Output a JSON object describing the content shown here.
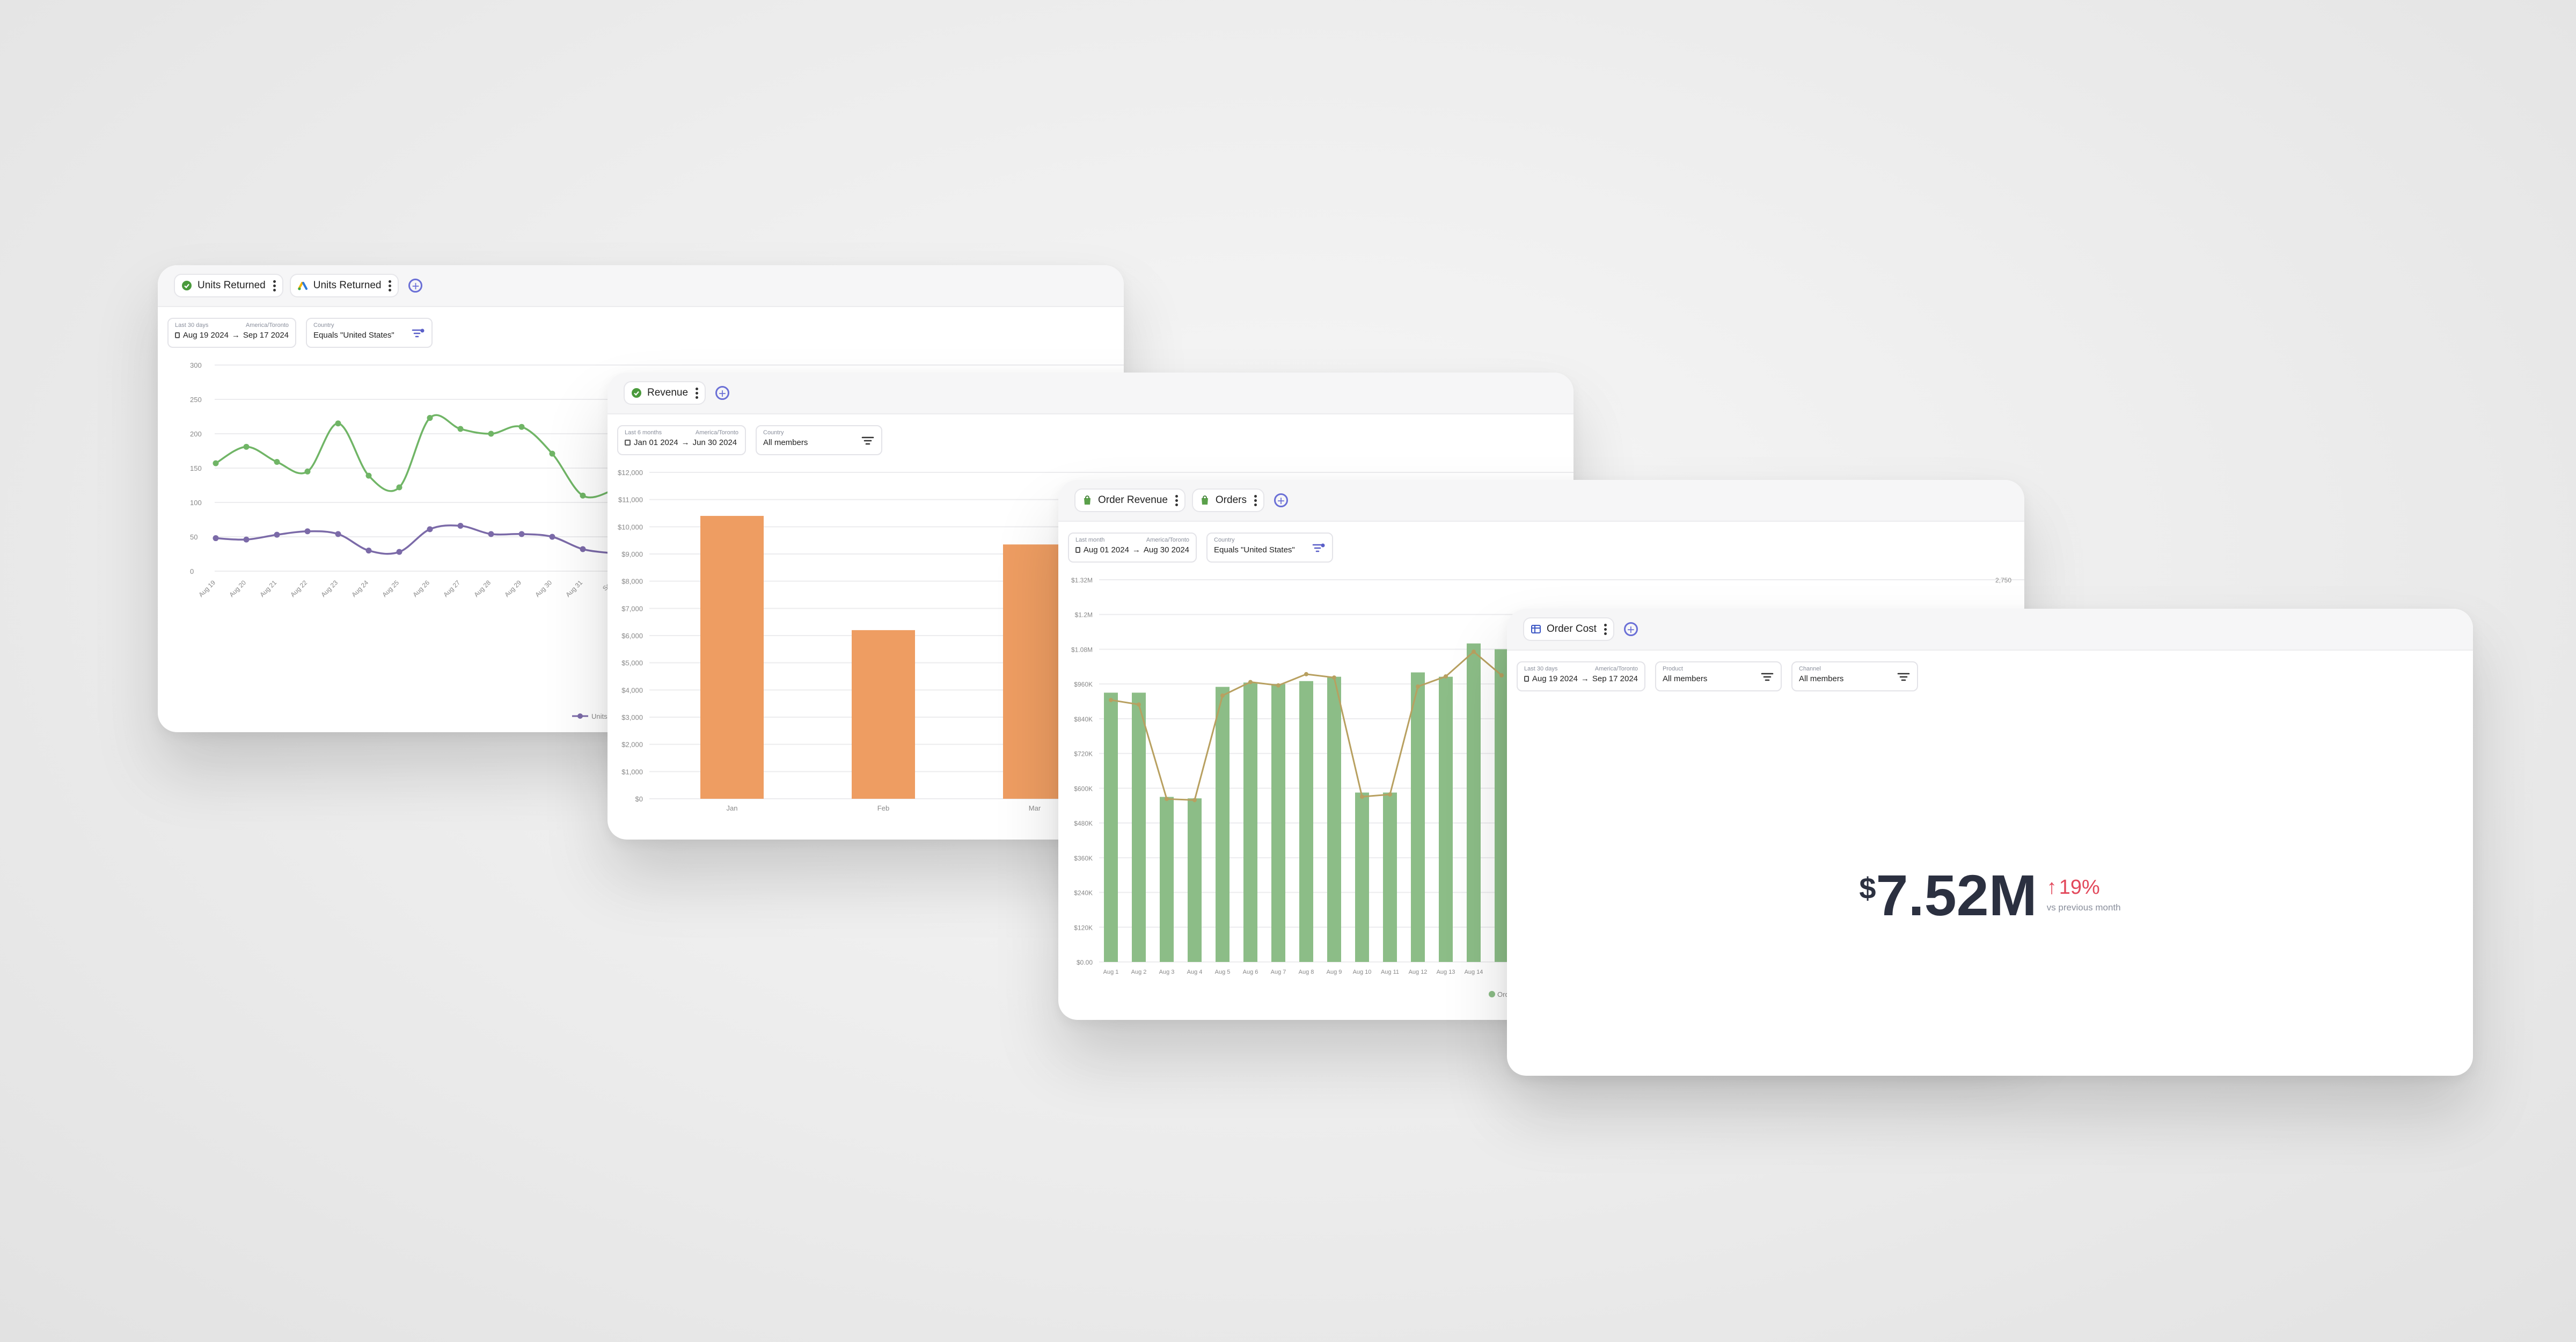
{
  "cards": {
    "units": {
      "tabs": [
        {
          "label": "Units Returned",
          "icon": "shopify-icon"
        },
        {
          "label": "Units Returned",
          "icon": "google-ads-icon"
        }
      ],
      "date": {
        "preset": "Last 30 days",
        "tz": "America/Toronto",
        "from": "Aug 19 2024",
        "to": "Sep 17 2024"
      },
      "filter": {
        "label": "Country",
        "value": "Equals \"United States\""
      },
      "legend_label": "Units"
    },
    "revenue": {
      "tabs": [
        {
          "label": "Revenue",
          "icon": "shopify-icon"
        }
      ],
      "date": {
        "preset": "Last 6 months",
        "tz": "America/Toronto",
        "from": "Jan 01 2024",
        "to": "Jun 30 2024"
      },
      "filter": {
        "label": "Country",
        "value": "All members"
      }
    },
    "orders": {
      "tabs": [
        {
          "label": "Order Revenue",
          "icon": "shopify-icon"
        },
        {
          "label": "Orders",
          "icon": "shopify-icon"
        }
      ],
      "date": {
        "preset": "Last month",
        "tz": "America/Toronto",
        "from": "Aug 01 2024",
        "to": "Aug 30 2024"
      },
      "filter": {
        "label": "Country",
        "value": "Equals \"United States\""
      },
      "legend_label": "Ord"
    },
    "cost": {
      "tabs": [
        {
          "label": "Order Cost",
          "icon": "spreadsheet-icon"
        }
      ],
      "date": {
        "preset": "Last 30 days",
        "tz": "America/Toronto",
        "from": "Aug 19 2024",
        "to": "Sep 17 2024"
      },
      "filters": [
        {
          "label": "Product",
          "value": "All members"
        },
        {
          "label": "Channel",
          "value": "All members"
        }
      ],
      "kpi": {
        "currency": "$",
        "value": "7.52M",
        "change": "19%",
        "direction": "up",
        "comparison": "vs previous month"
      }
    }
  },
  "colors": {
    "green": "#70b566",
    "purple": "#7b6aa8",
    "orange": "#ee9d62",
    "bar_green": "#8cbd87",
    "gold": "#b8a060",
    "red": "#e2485b",
    "accent": "#6a6fd6"
  },
  "chart_data": [
    {
      "type": "line",
      "x": [
        "Aug 19",
        "Aug 20",
        "Aug 21",
        "Aug 22",
        "Aug 23",
        "Aug 24",
        "Aug 25",
        "Aug 26",
        "Aug 27",
        "Aug 28",
        "Aug 29",
        "Aug 30",
        "Aug 31",
        "Sep 1"
      ],
      "x_ticks": [
        "Aug 19",
        "Aug 20",
        "Aug 21",
        "Aug 22",
        "Aug 23",
        "Aug 24",
        "Aug 25",
        "Aug 26",
        "Aug 27",
        "Aug 28",
        "Aug 29",
        "Aug 30",
        "Aug 31",
        "Sep"
      ],
      "series": [
        {
          "values": [
            157,
            181,
            159,
            145,
            215,
            139,
            122,
            223,
            207,
            200,
            210,
            171,
            110,
            118
          ]
        },
        {
          "values": [
            48,
            46,
            53,
            58,
            54,
            30,
            28,
            61,
            66,
            54,
            54,
            50,
            32,
            26
          ]
        }
      ],
      "yticks": [
        "0",
        "50",
        "100",
        "150",
        "200",
        "250",
        "300"
      ],
      "ylim": [
        0,
        300
      ]
    },
    {
      "type": "bar",
      "categories": [
        "Jan",
        "Feb",
        "Mar"
      ],
      "values": [
        10400,
        6200,
        9350
      ],
      "yticks": [
        "$0",
        "$1,000",
        "$2,000",
        "$3,000",
        "$4,000",
        "$5,000",
        "$6,000",
        "$7,000",
        "$8,000",
        "$9,000",
        "$10,000",
        "$11,000",
        "$12,000"
      ],
      "ylim": [
        0,
        12000
      ]
    },
    {
      "type": "bar",
      "categories": [
        "Aug 1",
        "Aug 2",
        "Aug 3",
        "Aug 4",
        "Aug 5",
        "Aug 6",
        "Aug 7",
        "Aug 8",
        "Aug 9",
        "Aug 10",
        "Aug 11",
        "Aug 12",
        "Aug 13",
        "Aug 14",
        "Aug 15"
      ],
      "x_ticks": [
        "Aug 1",
        "Aug 2",
        "Aug 3",
        "Aug 4",
        "Aug 5",
        "Aug 6",
        "Aug 7",
        "Aug 8",
        "Aug 9",
        "Aug 10",
        "Aug 11",
        "Aug 12",
        "Aug 13",
        "Aug 14"
      ],
      "series": [
        {
          "type": "bar",
          "values": [
            930000,
            930000,
            570000,
            565000,
            950000,
            965000,
            960000,
            970000,
            985000,
            585000,
            585000,
            1000000,
            985000,
            1100000,
            1080000
          ]
        },
        {
          "type": "line",
          "values": [
            2330,
            2290,
            1450,
            1440,
            2370,
            2490,
            2460,
            2560,
            2530,
            1470,
            1490,
            2450,
            2540,
            2760,
            2550
          ]
        }
      ],
      "yticks": [
        "$0.00",
        "$120K",
        "$240K",
        "$360K",
        "$480K",
        "$600K",
        "$720K",
        "$840K",
        "$960K",
        "$1.08M",
        "$1.2M",
        "$1.32M"
      ],
      "ylim": [
        0,
        1320000
      ],
      "y2_ticks": [
        "2,750"
      ],
      "y2lim": [
        0,
        3400
      ]
    }
  ]
}
